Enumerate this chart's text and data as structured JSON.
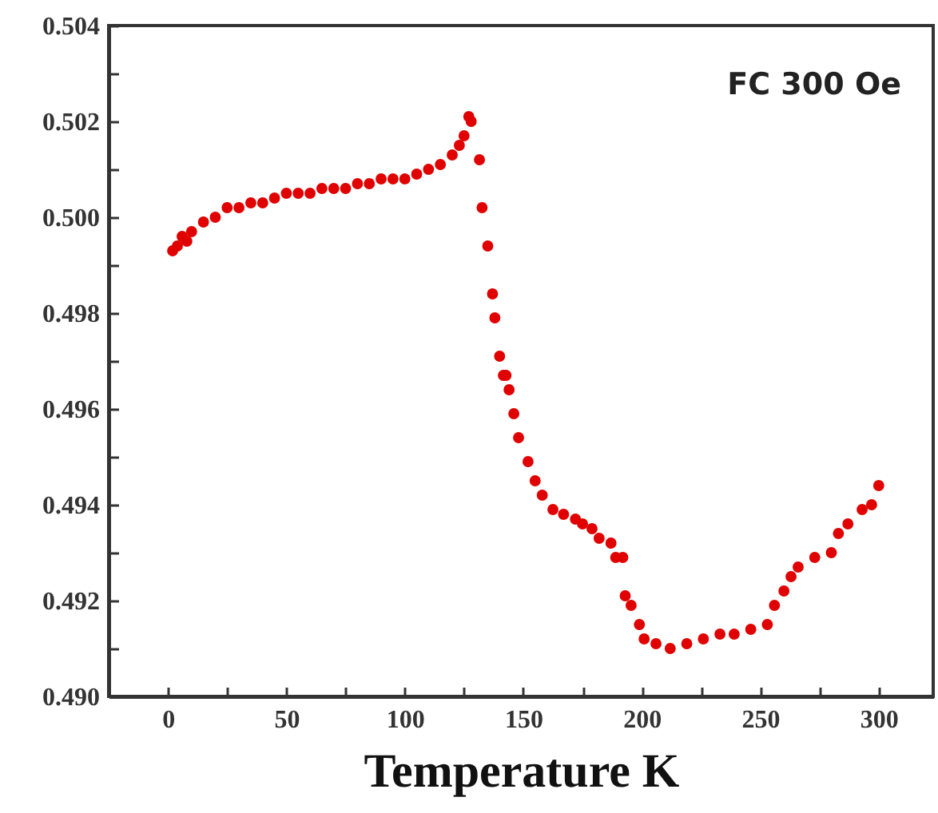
{
  "chart_data": {
    "type": "scatter",
    "xlabel": "Temperature K",
    "annotations": [
      "FC 300 Oe"
    ],
    "marker": "circle",
    "grid": false,
    "xlim": [
      -25,
      323
    ],
    "xticks": [
      0,
      {
        "value": 25,
        "label": null
      },
      50,
      {
        "value": 75,
        "label": null
      },
      100,
      {
        "value": 125,
        "label": null
      },
      150,
      {
        "value": 175,
        "label": null
      },
      200,
      {
        "value": 225,
        "label": null
      },
      250,
      {
        "value": 275,
        "label": null
      },
      300
    ],
    "ylim": [
      0.49,
      0.504
    ],
    "yticks": [
      {
        "value": 0.49,
        "label": "0.490"
      },
      {
        "value": 0.491,
        "label": null
      },
      {
        "value": 0.492,
        "label": "0.492"
      },
      {
        "value": 0.493,
        "label": null
      },
      {
        "value": 0.494,
        "label": "0.494"
      },
      {
        "value": 0.495,
        "label": null
      },
      {
        "value": 0.496,
        "label": "0.496"
      },
      {
        "value": 0.497,
        "label": null
      },
      {
        "value": 0.498,
        "label": "0.498"
      },
      {
        "value": 0.499,
        "label": null
      },
      {
        "value": 0.5,
        "label": "0.500"
      },
      {
        "value": 0.501,
        "label": null
      },
      {
        "value": 0.502,
        "label": "0.502"
      },
      {
        "value": 0.503,
        "label": null
      },
      {
        "value": 0.504,
        "label": "0.504"
      }
    ],
    "series": [
      {
        "color": "#e00000",
        "x": [
          2,
          4,
          6,
          8,
          10,
          15,
          20,
          25,
          30,
          35,
          40,
          45,
          50,
          55,
          60,
          65,
          70,
          75,
          80,
          85,
          90,
          95,
          100,
          105,
          110,
          115,
          120,
          123,
          125,
          127,
          128,
          131.5,
          132.6,
          135,
          137,
          138,
          140,
          141.6,
          142.7,
          144,
          146,
          148,
          152,
          155,
          158,
          162.5,
          167,
          172,
          175,
          179,
          182,
          187,
          189,
          192,
          193,
          195.5,
          199,
          201,
          206,
          212,
          219,
          226,
          233,
          239,
          246,
          253,
          256,
          260,
          263,
          266,
          273,
          280,
          283,
          287,
          293,
          297,
          300
        ],
        "values": [
          0.4993,
          0.4994,
          0.4996,
          0.4995,
          0.4997,
          0.4999,
          0.5,
          0.5002,
          0.5002,
          0.5003,
          0.5003,
          0.5004,
          0.5005,
          0.5005,
          0.5005,
          0.5006,
          0.5006,
          0.5006,
          0.5007,
          0.5007,
          0.5008,
          0.5008,
          0.5008,
          0.5009,
          0.501,
          0.5011,
          0.5013,
          0.5015,
          0.5017,
          0.5021,
          0.502,
          0.5012,
          0.5002,
          0.4994,
          0.4984,
          0.4979,
          0.4971,
          0.4967,
          0.4967,
          0.4964,
          0.4959,
          0.4954,
          0.4949,
          0.4945,
          0.4942,
          0.4939,
          0.4938,
          0.4937,
          0.4936,
          0.4935,
          0.4933,
          0.4932,
          0.4929,
          0.4929,
          0.4921,
          0.4919,
          0.4915,
          0.4912,
          0.4911,
          0.491,
          0.4911,
          0.4912,
          0.4913,
          0.4913,
          0.4914,
          0.4915,
          0.4919,
          0.4922,
          0.4925,
          0.4927,
          0.4929,
          0.493,
          0.4934,
          0.4936,
          0.4939,
          0.494,
          0.4944
        ]
      }
    ]
  }
}
